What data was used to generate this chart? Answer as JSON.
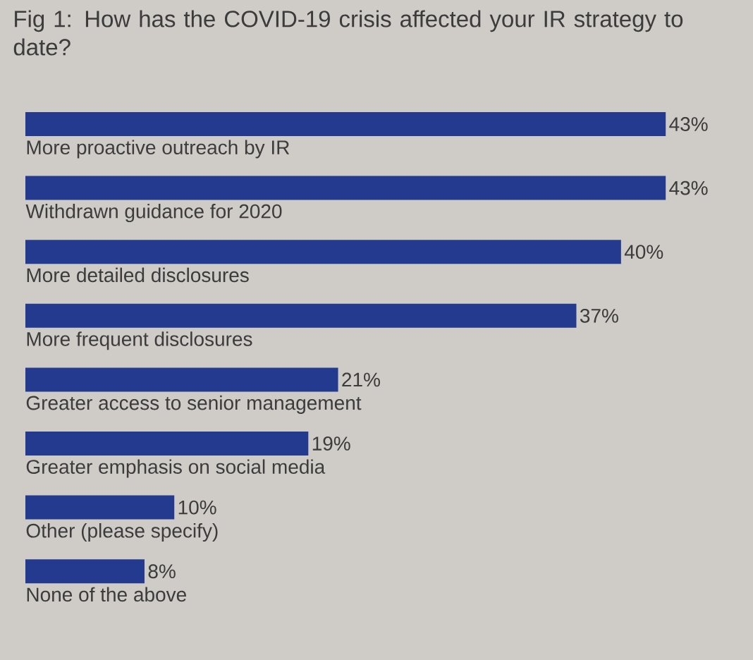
{
  "chart_data": {
    "type": "bar",
    "orientation": "horizontal",
    "title": "Fig 1: How has the COVID-19 crisis affected your IR strategy to date?",
    "categories": [
      "More proactive outreach by IR",
      "Withdrawn guidance for 2020",
      "More detailed disclosures",
      "More frequent disclosures",
      "Greater access to senior management",
      "Greater emphasis on social media",
      "Other (please specify)",
      "None of the above"
    ],
    "values": [
      43,
      43,
      40,
      37,
      21,
      19,
      10,
      8
    ],
    "value_labels": [
      "43%",
      "43%",
      "40%",
      "37%",
      "21%",
      "19%",
      "10%",
      "8%"
    ],
    "color": "#233a8f"
  }
}
